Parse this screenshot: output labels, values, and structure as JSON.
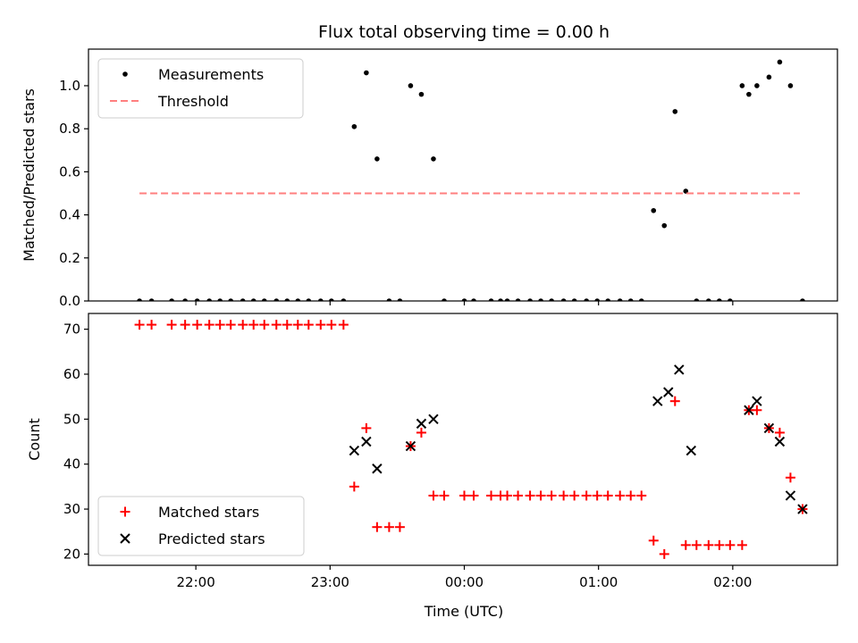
{
  "chart_data": {
    "type": "scatter",
    "title": "Flux total observing time = 0.00 h",
    "x_axis": {
      "xlabel": "Time (UTC)",
      "tick_labels": [
        "22:00",
        "23:00",
        "00:00",
        "01:00",
        "02:00"
      ],
      "tick_hours": [
        22,
        23,
        24,
        25,
        26
      ],
      "xlim_hours": [
        21.2,
        26.78
      ]
    },
    "panels": [
      {
        "ylabel": "Matched/Predicted stars",
        "ylim": [
          0,
          1.17
        ],
        "yticks": [
          0.0,
          0.2,
          0.4,
          0.6,
          0.8,
          1.0
        ],
        "ytick_labels": [
          "0.0",
          "0.2",
          "0.4",
          "0.6",
          "0.8",
          "1.0"
        ],
        "legend": "upper left",
        "series": [
          {
            "name": "Measurements",
            "marker": "dot",
            "color": "#000000",
            "x": [
              21.58,
              21.67,
              21.82,
              21.92,
              22.01,
              22.1,
              22.18,
              22.26,
              22.35,
              22.43,
              22.51,
              22.6,
              22.68,
              22.76,
              22.84,
              22.93,
              23.01,
              23.1,
              23.18,
              23.27,
              23.35,
              23.44,
              23.52,
              23.6,
              23.68,
              23.77,
              23.85,
              24.0,
              24.07,
              24.2,
              24.27,
              24.32,
              24.4,
              24.49,
              24.57,
              24.65,
              24.74,
              24.82,
              24.91,
              24.99,
              25.07,
              25.16,
              25.24,
              25.32,
              25.41,
              25.49,
              25.57,
              25.65,
              25.73,
              25.82,
              25.9,
              25.98,
              26.07,
              26.12,
              26.18,
              26.27,
              26.35,
              26.43,
              26.52
            ],
            "y": [
              0,
              0,
              0,
              0,
              0,
              0,
              0,
              0,
              0,
              0,
              0,
              0,
              0,
              0,
              0,
              0,
              0,
              0,
              0.81,
              1.06,
              0.66,
              0,
              0,
              1.0,
              0.96,
              0.66,
              0,
              0,
              0,
              0,
              0,
              0,
              0,
              0,
              0,
              0,
              0,
              0,
              0,
              0,
              0,
              0,
              0,
              0,
              0.42,
              0.35,
              0.88,
              0.51,
              0,
              0,
              0,
              0,
              1.0,
              0.96,
              1.0,
              1.04,
              1.11,
              1.0,
              0
            ]
          },
          {
            "name": "Threshold",
            "marker": "dashed-line",
            "color": "#ff7f7f",
            "x": [
              21.58,
              26.5
            ],
            "y": [
              0.5,
              0.5
            ]
          }
        ]
      },
      {
        "ylabel": "Count",
        "ylim": [
          17.5,
          73.5
        ],
        "yticks": [
          20,
          30,
          40,
          50,
          60,
          70
        ],
        "ytick_labels": [
          "20",
          "30",
          "40",
          "50",
          "60",
          "70"
        ],
        "legend": "lower left",
        "series": [
          {
            "name": "Matched stars",
            "marker": "plus",
            "color": "#ff0000",
            "x": [
              21.58,
              21.67,
              21.82,
              21.92,
              22.01,
              22.1,
              22.18,
              22.26,
              22.35,
              22.43,
              22.51,
              22.6,
              22.68,
              22.76,
              22.84,
              22.93,
              23.01,
              23.1,
              23.18,
              23.27,
              23.35,
              23.44,
              23.52,
              23.6,
              23.68,
              23.77,
              23.85,
              24.0,
              24.07,
              24.2,
              24.27,
              24.32,
              24.4,
              24.49,
              24.57,
              24.65,
              24.74,
              24.82,
              24.91,
              24.99,
              25.07,
              25.16,
              25.24,
              25.32,
              25.41,
              25.49,
              25.57,
              25.65,
              25.73,
              25.82,
              25.9,
              25.98,
              26.07,
              26.12,
              26.18,
              26.27,
              26.35,
              26.43,
              26.52
            ],
            "y": [
              71,
              71,
              71,
              71,
              71,
              71,
              71,
              71,
              71,
              71,
              71,
              71,
              71,
              71,
              71,
              71,
              71,
              71,
              35,
              48,
              26,
              26,
              26,
              44,
              47,
              33,
              33,
              33,
              33,
              33,
              33,
              33,
              33,
              33,
              33,
              33,
              33,
              33,
              33,
              33,
              33,
              33,
              33,
              33,
              23,
              20,
              54,
              22,
              22,
              22,
              22,
              22,
              22,
              52,
              52,
              48,
              47,
              37,
              30
            ]
          },
          {
            "name": "Predicted stars",
            "marker": "x",
            "color": "#000000",
            "x": [
              23.18,
              23.27,
              23.35,
              23.6,
              23.68,
              23.77,
              25.44,
              25.52,
              25.6,
              25.69,
              26.12,
              26.18,
              26.27,
              26.35,
              26.43,
              26.52
            ],
            "y": [
              43,
              45,
              39,
              44,
              49,
              50,
              54,
              56,
              61,
              43,
              52,
              54,
              48,
              45,
              33,
              30
            ]
          }
        ]
      }
    ]
  }
}
